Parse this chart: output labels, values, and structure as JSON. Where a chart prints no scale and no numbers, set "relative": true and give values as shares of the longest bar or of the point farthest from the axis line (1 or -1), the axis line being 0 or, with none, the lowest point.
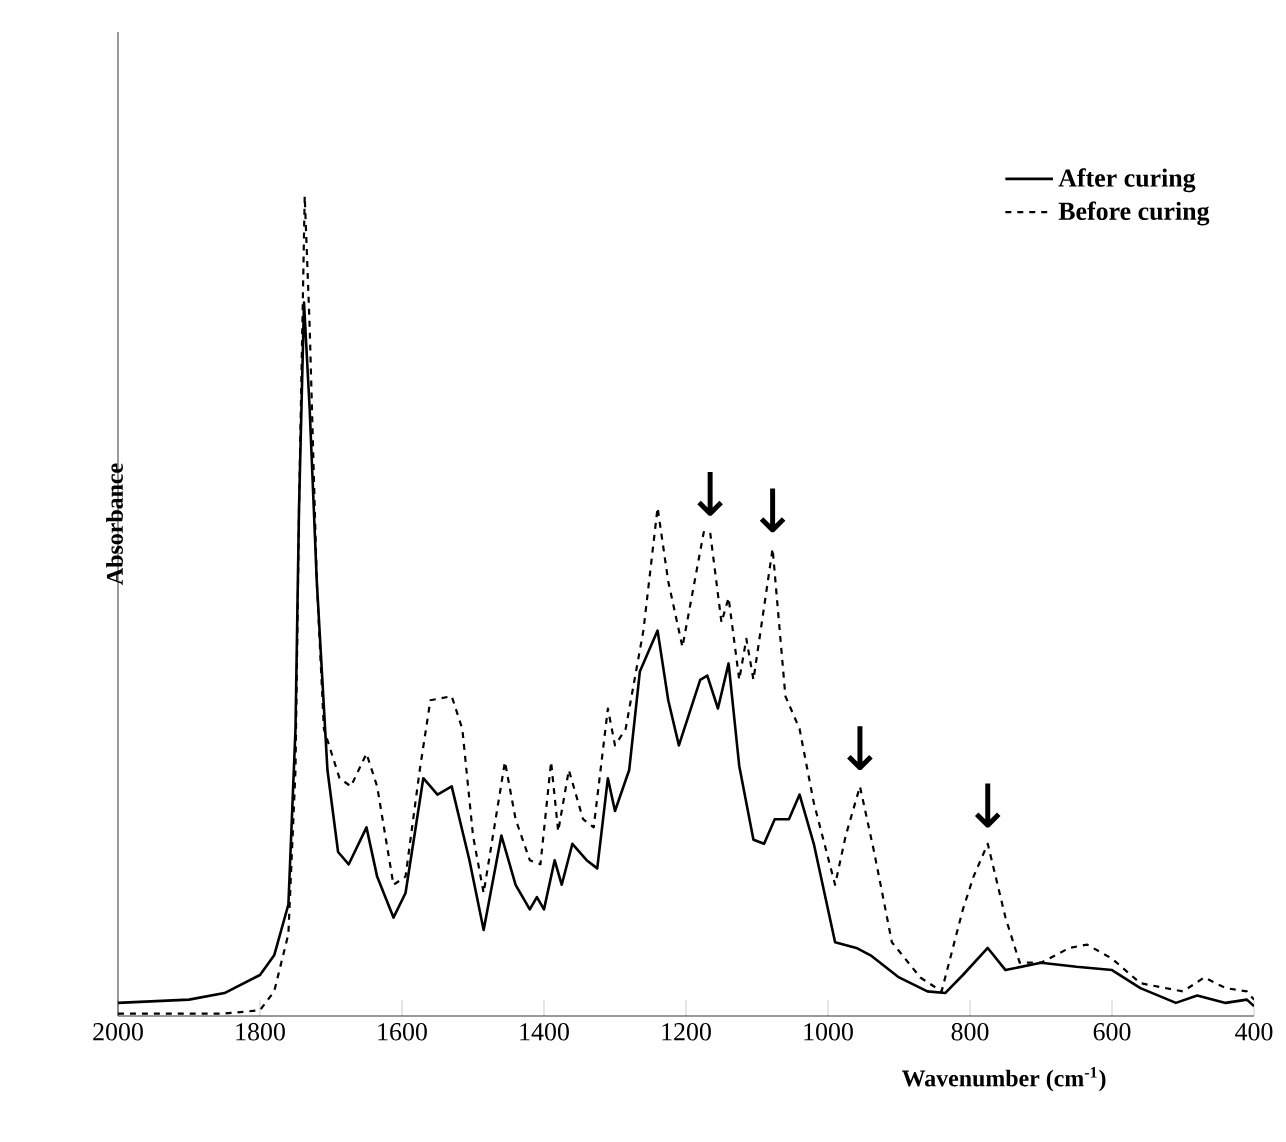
{
  "chart_data": {
    "type": "line",
    "relative": true,
    "xlabel": "Wavenumber (cm$^{-1}$)",
    "ylabel": "Absorbance",
    "xlim": [
      2000,
      400
    ],
    "xticks": [
      2000,
      1800,
      1600,
      1400,
      1200,
      1000,
      800,
      600,
      400
    ],
    "legend": "top right",
    "annotations": [
      {
        "text": "↓",
        "x": 1166,
        "y": 0.59
      },
      {
        "text": "↓",
        "x": 1078,
        "y": 0.57
      },
      {
        "text": "↓",
        "x": 955,
        "y": 0.28
      },
      {
        "text": "↓",
        "x": 775,
        "y": 0.21
      }
    ],
    "series": [
      {
        "name": "After curing",
        "color": "#000000",
        "line_style": "solid",
        "x": [
          2000,
          1900,
          1850,
          1800,
          1780,
          1760,
          1750,
          1745,
          1738,
          1730,
          1720,
          1705,
          1690,
          1675,
          1650,
          1635,
          1612,
          1595,
          1570,
          1550,
          1530,
          1505,
          1485,
          1460,
          1440,
          1420,
          1410,
          1400,
          1385,
          1375,
          1360,
          1340,
          1325,
          1310,
          1300,
          1280,
          1265,
          1240,
          1225,
          1210,
          1195,
          1180,
          1170,
          1155,
          1140,
          1125,
          1105,
          1090,
          1075,
          1055,
          1040,
          1020,
          990,
          960,
          940,
          900,
          860,
          835,
          810,
          775,
          750,
          700,
          650,
          600,
          560,
          510,
          480,
          440,
          410,
          400
        ],
        "values": [
          0.016,
          0.02,
          0.028,
          0.05,
          0.074,
          0.136,
          0.35,
          0.62,
          0.87,
          0.74,
          0.53,
          0.3,
          0.2,
          0.185,
          0.23,
          0.17,
          0.12,
          0.15,
          0.29,
          0.27,
          0.28,
          0.19,
          0.105,
          0.22,
          0.16,
          0.13,
          0.145,
          0.13,
          0.19,
          0.16,
          0.21,
          0.19,
          0.18,
          0.29,
          0.25,
          0.3,
          0.42,
          0.47,
          0.385,
          0.33,
          0.37,
          0.41,
          0.415,
          0.375,
          0.43,
          0.305,
          0.215,
          0.21,
          0.24,
          0.24,
          0.27,
          0.21,
          0.09,
          0.083,
          0.074,
          0.047,
          0.03,
          0.028,
          0.05,
          0.083,
          0.056,
          0.065,
          0.06,
          0.056,
          0.034,
          0.016,
          0.025,
          0.016,
          0.02,
          0.012
        ]
      },
      {
        "name": "Before curing",
        "color": "#000000",
        "line_style": "dashed",
        "x": [
          2000,
          1850,
          1800,
          1780,
          1760,
          1750,
          1745,
          1737,
          1730,
          1720,
          1710,
          1688,
          1672,
          1650,
          1635,
          1612,
          1595,
          1575,
          1560,
          1530,
          1515,
          1500,
          1485,
          1470,
          1455,
          1440,
          1420,
          1405,
          1390,
          1380,
          1365,
          1345,
          1330,
          1310,
          1300,
          1285,
          1260,
          1240,
          1225,
          1205,
          1175,
          1166,
          1150,
          1140,
          1125,
          1115,
          1105,
          1078,
          1060,
          1040,
          1020,
          990,
          975,
          955,
          935,
          910,
          870,
          840,
          810,
          795,
          775,
          750,
          730,
          700,
          660,
          635,
          600,
          560,
          500,
          470,
          440,
          410,
          400
        ],
        "values": [
          0.003,
          0.003,
          0.007,
          0.03,
          0.1,
          0.3,
          0.62,
          1.0,
          0.84,
          0.53,
          0.35,
          0.29,
          0.28,
          0.32,
          0.28,
          0.16,
          0.17,
          0.3,
          0.385,
          0.39,
          0.35,
          0.22,
          0.15,
          0.23,
          0.31,
          0.24,
          0.19,
          0.185,
          0.31,
          0.225,
          0.3,
          0.24,
          0.23,
          0.375,
          0.33,
          0.35,
          0.47,
          0.62,
          0.53,
          0.45,
          0.59,
          0.59,
          0.48,
          0.51,
          0.41,
          0.46,
          0.41,
          0.57,
          0.39,
          0.35,
          0.26,
          0.16,
          0.22,
          0.28,
          0.2,
          0.09,
          0.047,
          0.03,
          0.13,
          0.17,
          0.21,
          0.12,
          0.065,
          0.065,
          0.083,
          0.087,
          0.07,
          0.04,
          0.03,
          0.047,
          0.034,
          0.03,
          0.02
        ]
      }
    ]
  }
}
